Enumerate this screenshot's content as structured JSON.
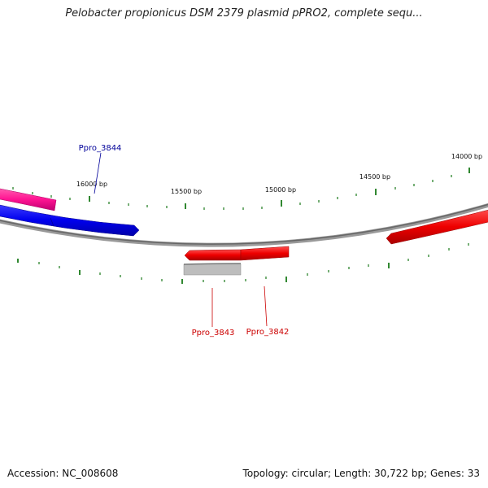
{
  "title": "Pelobacter propionicus DSM 2379 plasmid pPRO2, complete sequ...",
  "footer": {
    "accession": "Accession: NC_008608",
    "summary": "Topology: circular; Length: 30,722 bp; Genes: 33"
  },
  "tick_labels": [
    "16000 bp",
    "15500 bp",
    "15000 bp",
    "14500 bp",
    "14000 bp"
  ],
  "genes": [
    {
      "name": "Ppro_3844",
      "color": "#000099"
    },
    {
      "name": "Ppro_3843",
      "color": "#cc0000"
    },
    {
      "name": "Ppro_3842",
      "color": "#cc0000"
    }
  ],
  "colors": {
    "backbone": "#888888",
    "ticks": "#1a7a1a",
    "forward_gene": "#ff0000",
    "reverse_gene": "#0000ff",
    "pink_gene": "#ff1493",
    "gray_feature": "#bbbbbb"
  }
}
